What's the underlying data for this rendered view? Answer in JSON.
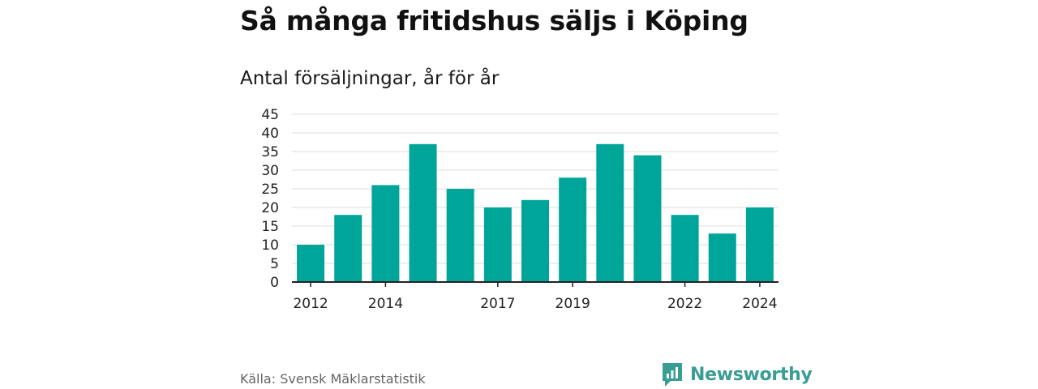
{
  "header": {
    "title": "Så många fritidshus säljs i Köping",
    "subtitle": "Antal försäljningar, år för år"
  },
  "footer": {
    "source": "Källa: Svensk Mäklarstatistik",
    "brand": "Newsworthy"
  },
  "colors": {
    "bar": "#00a59a",
    "brand": "#3a9d93",
    "grid": "#dddddd",
    "axis": "#222222"
  },
  "chart_data": {
    "type": "bar",
    "categories": [
      "2012",
      "2013",
      "2014",
      "2015",
      "2016",
      "2017",
      "2018",
      "2019",
      "2020",
      "2021",
      "2022",
      "2023",
      "2024"
    ],
    "x_tick_labels": [
      "2012",
      "2014",
      "2017",
      "2019",
      "2022",
      "2024"
    ],
    "values": [
      10,
      18,
      26,
      37,
      25,
      20,
      22,
      28,
      37,
      34,
      18,
      13,
      20
    ],
    "ylim": [
      0,
      45
    ],
    "yticks": [
      0,
      5,
      10,
      15,
      20,
      25,
      30,
      35,
      40,
      45
    ],
    "grid": true,
    "legend": "none"
  }
}
